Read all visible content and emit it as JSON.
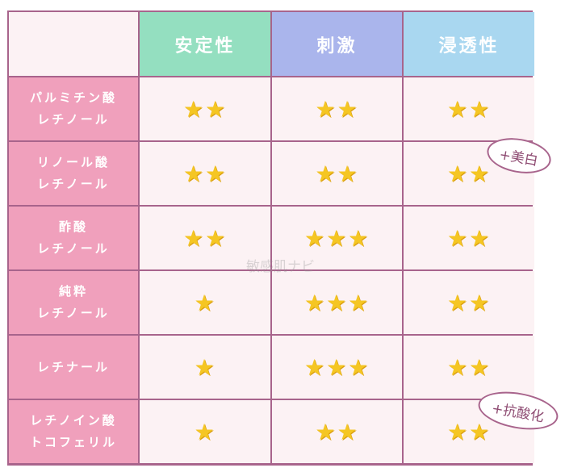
{
  "columns": [
    "",
    "安定性",
    "刺激",
    "浸透性"
  ],
  "rows": [
    {
      "name_line1": "パルミチン酸",
      "name_line2": "レチノール",
      "stability": 2,
      "irritation": 2,
      "penetration": 2
    },
    {
      "name_line1": "リノール酸",
      "name_line2": "レチノール",
      "stability": 2,
      "irritation": 2,
      "penetration": 2
    },
    {
      "name_line1": "酢酸",
      "name_line2": "レチノール",
      "stability": 2,
      "irritation": 3,
      "penetration": 2
    },
    {
      "name_line1": "純粋",
      "name_line2": "レチノール",
      "stability": 1,
      "irritation": 3,
      "penetration": 2
    },
    {
      "name_line1": "レチナール",
      "name_line2": "",
      "stability": 1,
      "irritation": 3,
      "penetration": 2
    },
    {
      "name_line1": "レチノイン酸",
      "name_line2": "トコフェリル",
      "stability": 1,
      "irritation": 2,
      "penetration": 2
    }
  ],
  "badges": {
    "whitening": "+美白",
    "antioxidant": "+抗酸化"
  },
  "watermark": "敏感肌ナビ",
  "colors": {
    "stability_header": "#94dfc0",
    "irritation_header": "#aab5ec",
    "penetration_header": "#a9d7f0",
    "row_header": "#f0a0bc",
    "cell": "#fcf2f4",
    "border": "#a8648c",
    "star": "#f5c623"
  }
}
